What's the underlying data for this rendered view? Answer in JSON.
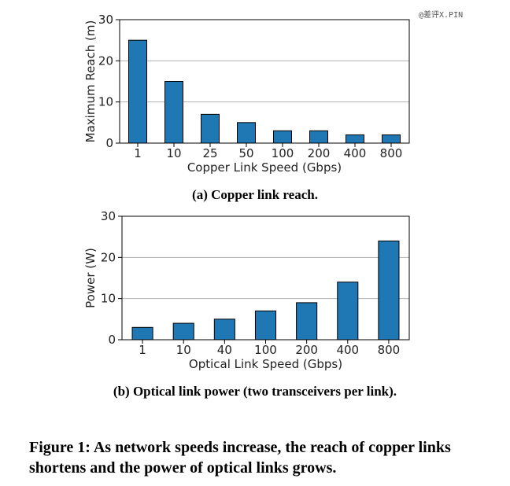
{
  "watermark": "@差评X.PIN",
  "chart_data": [
    {
      "type": "bar",
      "categories": [
        "1",
        "10",
        "25",
        "50",
        "100",
        "200",
        "400",
        "800"
      ],
      "values": [
        25,
        15,
        7,
        5,
        3,
        3,
        2,
        2
      ],
      "title": "(a) Copper link reach.",
      "xlabel": "Copper Link Speed (Gbps)",
      "ylabel": "Maximum Reach (m)",
      "ylim": [
        0,
        30
      ],
      "yticks": [
        0,
        10,
        20,
        30
      ],
      "grid": true,
      "bar_color": "#1f77b4"
    },
    {
      "type": "bar",
      "categories": [
        "1",
        "10",
        "40",
        "100",
        "200",
        "400",
        "800"
      ],
      "values": [
        3,
        4,
        5,
        7,
        9,
        14,
        24
      ],
      "title": "(b) Optical link power (two transceivers per link).",
      "xlabel": "Optical Link Speed (Gbps)",
      "ylabel": "Power (W)",
      "ylim": [
        0,
        30
      ],
      "yticks": [
        0,
        10,
        20,
        30
      ],
      "grid": true,
      "bar_color": "#1f77b4"
    }
  ],
  "caption": "Figure 1: As network speeds increase, the reach of copper links shortens and the power of optical links grows."
}
